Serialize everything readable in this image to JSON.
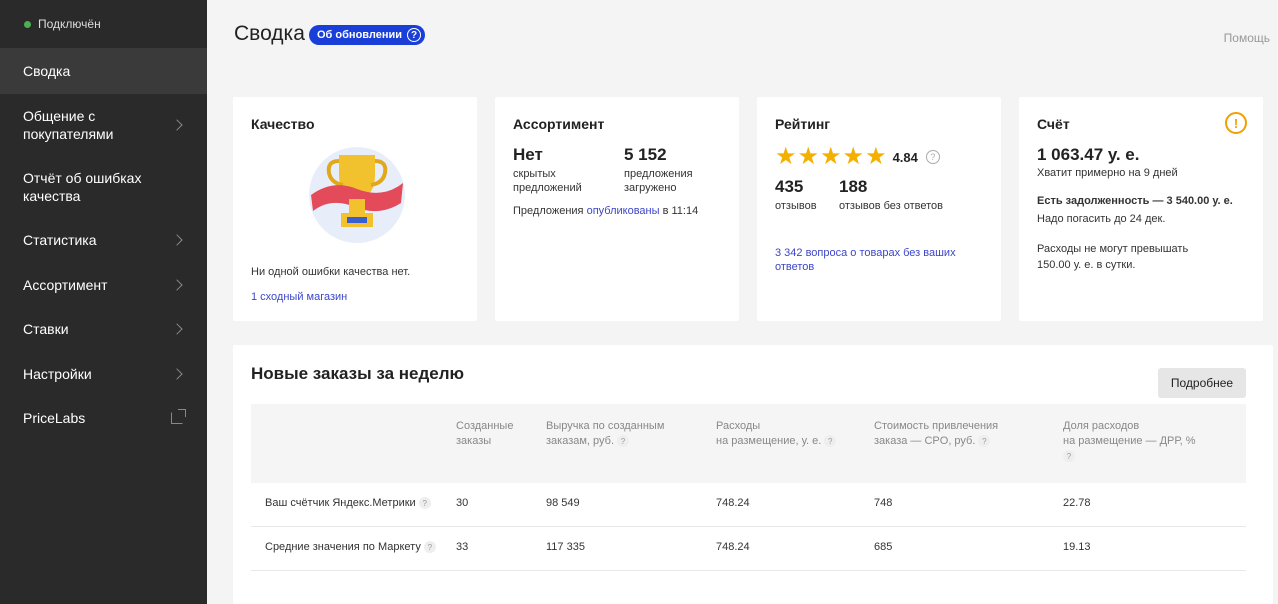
{
  "sidebar": {
    "status": "Подключён",
    "items": [
      {
        "label": "Сводка"
      },
      {
        "label": "Общение с покупателями"
      },
      {
        "label": "Отчёт об ошибках качества"
      },
      {
        "label": "Статистика"
      },
      {
        "label": "Ассортимент"
      },
      {
        "label": "Ставки"
      },
      {
        "label": "Настройки"
      },
      {
        "label": "PriceLabs"
      }
    ]
  },
  "header": {
    "title": "Сводка",
    "badge": "Об обновлении",
    "badge_icon": "?",
    "help": "Помощь"
  },
  "quality": {
    "title": "Качество",
    "message": "Ни одной ошибки качества нет.",
    "link": "1 сходный магазин"
  },
  "assortment": {
    "title": "Ассортимент",
    "hidden_value": "Нет",
    "hidden_label_1": "скрытых",
    "hidden_label_2": "предложений",
    "loaded_value": "5 152",
    "loaded_label_1": "предложения",
    "loaded_label_2": "загружено",
    "published_prefix": "Предложения",
    "published_link": "опубликованы",
    "published_suffix": "в 11:14"
  },
  "rating": {
    "title": "Рейтинг",
    "value": "4.84",
    "stars": 5,
    "reviews_value": "435",
    "reviews_label": "отзывов",
    "unanswered_value": "188",
    "unanswered_label": "отзывов без ответов",
    "questions_link_1": "3 342 вопроса о товарах без ваших",
    "questions_link_2": "ответов"
  },
  "account": {
    "title": "Счёт",
    "balance": "1 063.47 у. е.",
    "enough": "Хватит примерно на 9 дней",
    "debt": "Есть задолженность — 3 540.00 у. е.",
    "debt_due": "Надо погасить до 24 дек.",
    "limit_1": "Расходы не могут превышать",
    "limit_2": "150.00 у. е. в сутки.",
    "warning_icon": "!"
  },
  "orders": {
    "title": "Новые заказы за неделю",
    "more_button": "Подробнее",
    "columns": [
      {
        "line1": "Созданные",
        "line2": "заказы",
        "line3": "",
        "help": false
      },
      {
        "line1": "Выручка по созданным",
        "line2": "заказам, руб.",
        "line3": "",
        "help": true
      },
      {
        "line1": "Расходы",
        "line2": "на размещение, у. е.",
        "line3": "",
        "help": true
      },
      {
        "line1": "Стоимость привлечения",
        "line2": "заказа — CPO, руб.",
        "line3": "",
        "help": true
      },
      {
        "line1": "Доля расходов",
        "line2": "на размещение — ДРР, %",
        "line3": "",
        "help": true
      }
    ],
    "rows": [
      {
        "label": "Ваш счётчик Яндекс.Метрики",
        "values": [
          "30",
          "98 549",
          "748.24",
          "748",
          "22.78"
        ]
      },
      {
        "label": "Средние значения по Маркету",
        "values": [
          "33",
          "117 335",
          "748.24",
          "685",
          "19.13"
        ]
      }
    ],
    "help_icon": "?"
  },
  "colors": {
    "sidebar_bg": "#2a2a2a",
    "accent_blue": "#1a3fd8",
    "link": "#3c46c8",
    "star": "#f4b000",
    "warning": "#f0a000",
    "status_ok": "#4caf50"
  }
}
